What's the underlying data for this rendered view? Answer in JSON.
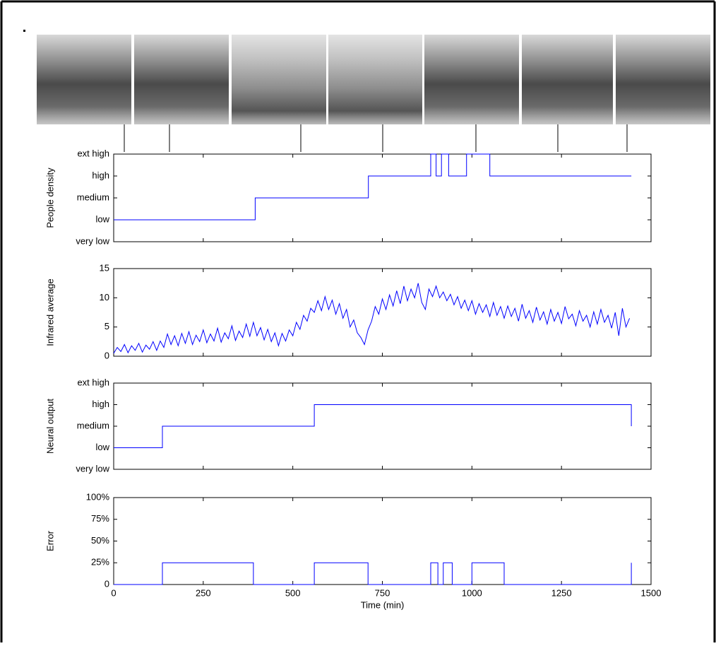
{
  "chart_data": [
    {
      "type": "line",
      "ylabel": "People density",
      "color": "#0000ff",
      "ylim": [
        0,
        4
      ],
      "yticks": [
        {
          "value": 0,
          "label": "very low"
        },
        {
          "value": 1,
          "label": "low"
        },
        {
          "value": 2,
          "label": "medium"
        },
        {
          "value": 3,
          "label": "high"
        },
        {
          "value": 4,
          "label": "ext high"
        }
      ],
      "x": [
        0,
        395,
        395,
        711,
        711,
        885,
        885,
        900,
        900,
        915,
        915,
        935,
        935,
        985,
        985,
        1050,
        1050,
        1445
      ],
      "values": [
        1,
        1,
        2,
        2,
        3,
        3,
        4,
        4,
        3,
        3,
        4,
        4,
        3,
        3,
        4,
        4,
        3,
        3
      ]
    },
    {
      "type": "line",
      "ylabel": "Infrared average",
      "color": "#0000ff",
      "ylim": [
        0,
        15
      ],
      "yticks": [
        0,
        5,
        10,
        15
      ],
      "x": [
        0,
        10,
        20,
        30,
        40,
        50,
        60,
        70,
        80,
        90,
        100,
        110,
        120,
        130,
        140,
        150,
        160,
        170,
        180,
        190,
        200,
        210,
        220,
        230,
        240,
        250,
        260,
        270,
        280,
        290,
        300,
        310,
        320,
        330,
        340,
        350,
        360,
        370,
        380,
        390,
        400,
        410,
        420,
        430,
        440,
        450,
        460,
        470,
        480,
        490,
        500,
        510,
        520,
        530,
        540,
        550,
        560,
        570,
        580,
        590,
        600,
        610,
        620,
        630,
        640,
        650,
        660,
        670,
        680,
        690,
        700,
        710,
        720,
        730,
        740,
        750,
        760,
        770,
        780,
        790,
        800,
        810,
        820,
        830,
        840,
        850,
        860,
        870,
        880,
        890,
        900,
        910,
        920,
        930,
        940,
        950,
        960,
        970,
        980,
        990,
        1000,
        1010,
        1020,
        1030,
        1040,
        1050,
        1060,
        1070,
        1080,
        1090,
        1100,
        1110,
        1120,
        1130,
        1140,
        1150,
        1160,
        1170,
        1180,
        1190,
        1200,
        1210,
        1220,
        1230,
        1240,
        1250,
        1260,
        1270,
        1280,
        1290,
        1300,
        1310,
        1320,
        1330,
        1340,
        1350,
        1360,
        1370,
        1380,
        1390,
        1400,
        1410,
        1420,
        1430,
        1440
      ],
      "values": [
        0.5,
        1.5,
        0.8,
        2.0,
        0.6,
        1.8,
        1.0,
        2.2,
        0.7,
        1.9,
        1.2,
        2.5,
        1.0,
        2.6,
        1.5,
        3.8,
        2.0,
        3.5,
        1.8,
        3.9,
        2.2,
        4.2,
        2.0,
        3.6,
        2.5,
        4.5,
        2.3,
        3.8,
        2.6,
        4.8,
        2.4,
        4.0,
        3.0,
        5.2,
        2.7,
        4.3,
        3.2,
        5.5,
        3.4,
        5.8,
        3.5,
        4.9,
        2.8,
        4.6,
        2.5,
        4.0,
        1.8,
        3.9,
        2.6,
        4.5,
        3.5,
        5.8,
        4.6,
        7.0,
        6.0,
        8.2,
        7.5,
        9.5,
        7.8,
        10.2,
        8.0,
        9.6,
        7.2,
        9.0,
        6.5,
        8.0,
        5.0,
        6.2,
        4.0,
        3.2,
        2.0,
        4.5,
        6.0,
        8.5,
        7.2,
        9.8,
        8.0,
        10.5,
        8.6,
        11.2,
        9.0,
        12.0,
        9.5,
        11.5,
        10.0,
        12.5,
        9.2,
        8.0,
        11.5,
        10.2,
        12.0,
        10.0,
        11.0,
        9.5,
        10.6,
        8.8,
        10.2,
        8.2,
        9.6,
        7.8,
        9.5,
        7.2,
        9.0,
        7.5,
        8.8,
        6.8,
        9.2,
        7.0,
        8.5,
        6.5,
        8.6,
        6.8,
        8.2,
        6.0,
        8.9,
        6.5,
        7.8,
        5.8,
        8.4,
        6.2,
        7.6,
        5.5,
        8.0,
        6.0,
        7.5,
        5.6,
        8.5,
        6.4,
        7.2,
        5.2,
        7.8,
        6.0,
        7.0,
        5.0,
        7.6,
        5.5,
        8.0,
        5.8,
        7.0,
        4.8,
        7.5,
        3.5,
        8.2,
        5.0,
        6.5
      ]
    },
    {
      "type": "line",
      "ylabel": "Neural output",
      "color": "#0000ff",
      "ylim": [
        0,
        4
      ],
      "yticks": [
        {
          "value": 0,
          "label": "very low"
        },
        {
          "value": 1,
          "label": "low"
        },
        {
          "value": 2,
          "label": "medium"
        },
        {
          "value": 3,
          "label": "high"
        },
        {
          "value": 4,
          "label": "ext high"
        }
      ],
      "x": [
        0,
        136,
        136,
        560,
        560,
        1445,
        1445
      ],
      "values": [
        1,
        1,
        2,
        2,
        3,
        3,
        2
      ]
    },
    {
      "type": "line",
      "ylabel": "Error",
      "xlabel": "Time (min)",
      "color": "#0000ff",
      "xlim": [
        0,
        1500
      ],
      "xticks": [
        0,
        250,
        500,
        750,
        1000,
        1250,
        1500
      ],
      "ylim": [
        0,
        100
      ],
      "yticks": [
        0,
        {
          "value": 25,
          "label": "25%"
        },
        {
          "value": 50,
          "label": "50%"
        },
        {
          "value": 75,
          "label": "75%"
        },
        {
          "value": 100,
          "label": "100%"
        }
      ],
      "x": [
        0,
        136,
        136,
        390,
        390,
        560,
        560,
        710,
        710,
        885,
        885,
        905,
        905,
        920,
        920,
        945,
        945,
        1000,
        1000,
        1090,
        1090,
        1445,
        1445
      ],
      "values": [
        0,
        0,
        25,
        25,
        0,
        0,
        25,
        25,
        0,
        0,
        25,
        25,
        0,
        0,
        25,
        25,
        0,
        0,
        25,
        25,
        0,
        0,
        25
      ]
    }
  ]
}
